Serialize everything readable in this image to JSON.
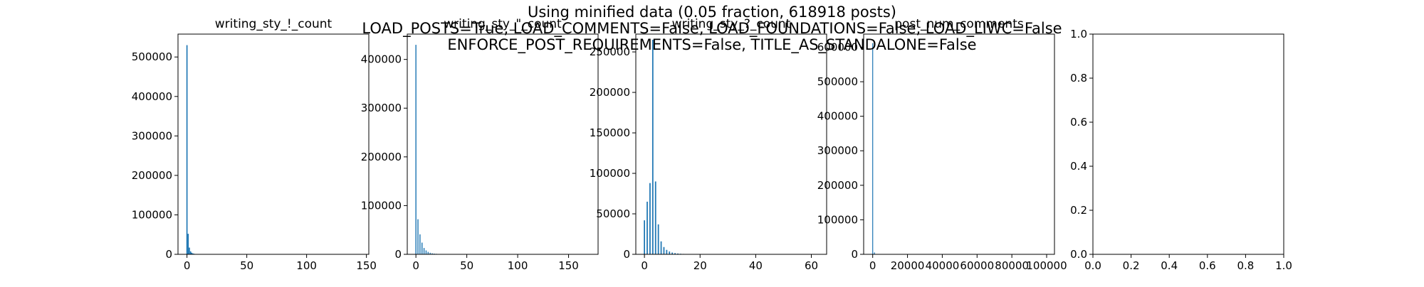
{
  "figure": {
    "suptitle_lines": [
      "Using minified data (0.05 fraction, 618918 posts)",
      "LOAD_POSTS=True, LOAD_COMMENTS=False, LOAD_FOUNDATIONS=False, LOAD_LIWC=False",
      "ENFORCE_POST_REQUIREMENTS=False, TITLE_AS_STANDALONE=False"
    ],
    "bar_color": "#1f77b4"
  },
  "chart_data": [
    {
      "type": "bar",
      "title": "writing_sty_!_count",
      "xlim": [
        -7.5,
        152
      ],
      "ylim": [
        0,
        558000
      ],
      "xticks": [
        0,
        50,
        100,
        150
      ],
      "xtick_labels": [
        "0",
        "50",
        "100",
        "150"
      ],
      "yticks": [
        0,
        100000,
        200000,
        300000,
        400000,
        500000
      ],
      "ytick_labels": [
        "0",
        "100000",
        "200000",
        "300000",
        "400000",
        "500000"
      ],
      "bar_width": 1,
      "x": [
        0,
        1,
        2,
        3,
        4,
        5,
        6,
        7,
        8,
        9,
        10,
        12,
        15,
        20
      ],
      "values": [
        530000,
        52000,
        17000,
        7500,
        4000,
        2200,
        1400,
        900,
        600,
        400,
        300,
        200,
        120,
        60
      ]
    },
    {
      "type": "bar",
      "title": "writing_sty_\"_count",
      "xlim": [
        -8.5,
        179
      ],
      "ylim": [
        0,
        452000
      ],
      "xticks": [
        0,
        50,
        100,
        150
      ],
      "xtick_labels": [
        "0",
        "50",
        "100",
        "150"
      ],
      "yticks": [
        0,
        100000,
        200000,
        300000,
        400000
      ],
      "ytick_labels": [
        "0",
        "100000",
        "200000",
        "300000",
        "400000"
      ],
      "bar_width": 1,
      "x": [
        0,
        2,
        4,
        6,
        8,
        10,
        12,
        14,
        16,
        18,
        20,
        22,
        24,
        26,
        28,
        30
      ],
      "values": [
        430000,
        72000,
        41000,
        24000,
        13000,
        8000,
        5000,
        3200,
        2100,
        1400,
        1000,
        700,
        500,
        350,
        250,
        150
      ]
    },
    {
      "type": "bar",
      "title": "writing_sty_?_count",
      "xlim": [
        -3.1,
        65.5
      ],
      "ylim": [
        0,
        272000
      ],
      "xticks": [
        0,
        20,
        40,
        60
      ],
      "xtick_labels": [
        "0",
        "20",
        "40",
        "60"
      ],
      "yticks": [
        0,
        50000,
        100000,
        150000,
        200000,
        250000
      ],
      "ytick_labels": [
        "0",
        "50000",
        "100000",
        "150000",
        "200000",
        "250000"
      ],
      "bar_width": 0.45,
      "x": [
        0,
        1,
        2,
        3,
        4,
        5,
        6,
        7,
        8,
        9,
        10,
        11,
        12,
        13,
        14,
        15,
        16,
        17,
        18,
        20,
        22
      ],
      "values": [
        42000,
        65000,
        88000,
        265000,
        90000,
        37000,
        16000,
        9000,
        5500,
        3500,
        2200,
        1500,
        1000,
        700,
        500,
        350,
        250,
        180,
        120,
        80,
        40
      ]
    },
    {
      "type": "bar",
      "title": "post_num_comments",
      "xlim": [
        -5200,
        104500
      ],
      "ylim": [
        0,
        638000
      ],
      "xticks": [
        0,
        20000,
        40000,
        60000,
        80000,
        100000
      ],
      "xtick_labels": [
        "0",
        "20000",
        "40000",
        "60000",
        "80000",
        "100000"
      ],
      "yticks": [
        0,
        100000,
        200000,
        300000,
        400000,
        500000,
        600000
      ],
      "ytick_labels": [
        "0",
        "100000",
        "200000",
        "300000",
        "400000",
        "500000",
        "600000"
      ],
      "bar_width": 400,
      "x": [
        0,
        1000,
        2000
      ],
      "values": [
        612000,
        5500,
        1000
      ]
    },
    {
      "type": "bar",
      "title": "",
      "xlim": [
        0,
        1
      ],
      "ylim": [
        0,
        1
      ],
      "xticks": [
        0,
        0.2,
        0.4,
        0.6,
        0.8,
        1
      ],
      "xtick_labels": [
        "0.0",
        "0.2",
        "0.4",
        "0.6",
        "0.8",
        "1.0"
      ],
      "yticks": [
        0,
        0.2,
        0.4,
        0.6,
        0.8,
        1
      ],
      "ytick_labels": [
        "0.0",
        "0.2",
        "0.4",
        "0.6",
        "0.8",
        "1.0"
      ],
      "bar_width": 0,
      "x": [],
      "values": []
    }
  ]
}
